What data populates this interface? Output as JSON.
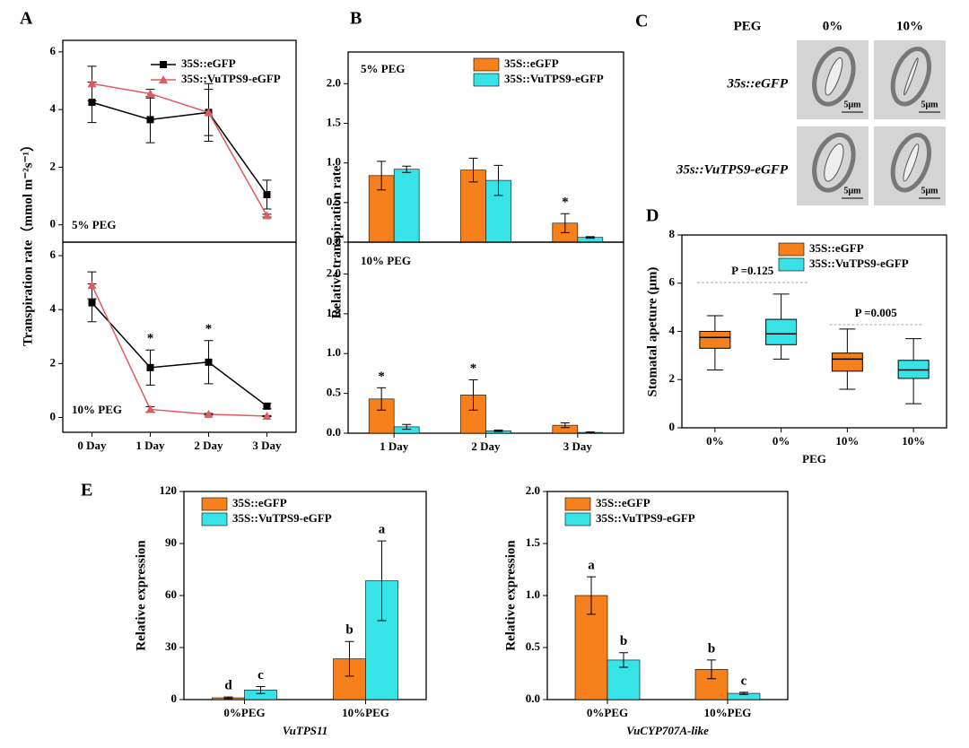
{
  "chart_data": [
    {
      "type": "line",
      "panel": "A",
      "subtitle": "5% PEG",
      "ylabel": "Transpiration rate（mmol m⁻²s⁻¹）",
      "ylim": [
        -0.6,
        6.4
      ],
      "yticks": [
        0,
        2,
        4,
        6
      ],
      "series": [
        {
          "name": "35S::eGFP",
          "color": "#000000",
          "marker": "square",
          "values": [
            4.25,
            3.65,
            3.9,
            1.05
          ],
          "errors": [
            0.7,
            0.8,
            0.8,
            0.5
          ]
        },
        {
          "name": "35S::VuTPS9-eGFP",
          "color": "#e05a5f",
          "marker": "triangle",
          "values": [
            4.9,
            4.55,
            3.9,
            0.32
          ],
          "errors": [
            0.6,
            0.15,
            1.0,
            0.05
          ]
        }
      ]
    },
    {
      "type": "line",
      "subtitle": "10% PEG",
      "categories": [
        "0 Day",
        "1 Day",
        "2 Day",
        "3 Day"
      ],
      "ylim": [
        -0.55,
        6.5
      ],
      "yticks": [
        0,
        2,
        4,
        6
      ],
      "series": [
        {
          "color": "#000000",
          "marker": "square",
          "values": [
            4.25,
            1.85,
            2.05,
            0.42
          ],
          "errors": [
            0.7,
            0.65,
            0.8,
            0.1
          ],
          "significance": [
            null,
            "*",
            "*",
            null
          ]
        },
        {
          "color": "#e05a5f",
          "marker": "triangle",
          "values": [
            4.9,
            0.3,
            0.12,
            0.05
          ],
          "errors": [
            0.5,
            0.1,
            0.03,
            0.02
          ]
        }
      ]
    },
    {
      "type": "bar",
      "panel": "B",
      "subtitle": "5% PEG",
      "ylabel": "Relative transpiration rate",
      "ylim": [
        0,
        2.4
      ],
      "yticks": [
        {
          "value": 0,
          "label": "0.0"
        },
        0.5,
        {
          "value": 1,
          "label": "1.0"
        },
        1.5,
        {
          "value": 2,
          "label": "2.0"
        }
      ],
      "series": [
        {
          "name": "35S::eGFP",
          "color": "#f5801c",
          "values": [
            0.84,
            0.91,
            0.24
          ],
          "errors": [
            0.18,
            0.15,
            0.12
          ],
          "significance": [
            null,
            null,
            "*"
          ]
        },
        {
          "name": "35S::VuTPS9-eGFP",
          "color": "#38e3e8",
          "values": [
            0.92,
            0.78,
            0.06
          ],
          "errors": [
            0.04,
            0.19,
            0.01
          ]
        }
      ]
    },
    {
      "type": "bar",
      "subtitle": "10% PEG",
      "categories": [
        "1 Day",
        "2 Day",
        "3 Day"
      ],
      "ylim": [
        0,
        2.4
      ],
      "yticks": [
        {
          "value": 0,
          "label": "0.0"
        },
        0.5,
        {
          "value": 1,
          "label": "1.0"
        },
        1.5,
        {
          "value": 2,
          "label": "2.0"
        }
      ],
      "series": [
        {
          "color": "#f5801c",
          "values": [
            0.43,
            0.48,
            0.1
          ],
          "errors": [
            0.14,
            0.19,
            0.03
          ],
          "significance": [
            "*",
            "*",
            null
          ]
        },
        {
          "color": "#38e3e8",
          "values": [
            0.08,
            0.03,
            0.01
          ],
          "errors": [
            0.03,
            0.01,
            0.005
          ]
        }
      ]
    },
    {
      "type": "image",
      "panel": "C",
      "header": "PEG",
      "columns": [
        "0%",
        "10%"
      ],
      "rows": [
        "35s::eGFP",
        "35s::VuTPS9-eGFP"
      ],
      "scale_label": "5μm"
    },
    {
      "type": "box",
      "panel": "D",
      "ylabel": "Stomatal apeture (μm)",
      "xlabel": "PEG",
      "categories": [
        "0%",
        "0%",
        "10%",
        "10%"
      ],
      "ylim": [
        0,
        8
      ],
      "yticks": [
        0,
        2,
        4,
        6,
        8
      ],
      "annotations": [
        "P =0.125",
        "P =0.005"
      ],
      "series": [
        {
          "name": "35S::eGFP",
          "color": "#f5801c",
          "min": [
            2.4,
            null,
            1.6,
            null
          ],
          "q1": [
            3.3,
            null,
            2.35,
            null
          ],
          "median": [
            3.75,
            null,
            2.85,
            null
          ],
          "q3": [
            4.0,
            null,
            3.1,
            null
          ],
          "max": [
            4.65,
            null,
            4.1,
            null
          ]
        },
        {
          "name": "35S::VuTPS9-eGFP",
          "color": "#38e3e8",
          "min": [
            null,
            2.85,
            null,
            1.0
          ],
          "q1": [
            null,
            3.45,
            null,
            2.05
          ],
          "median": [
            null,
            3.9,
            null,
            2.4
          ],
          "q3": [
            null,
            4.5,
            null,
            2.8
          ],
          "max": [
            null,
            5.55,
            null,
            3.7
          ]
        }
      ]
    },
    {
      "type": "bar",
      "panel": "E",
      "ylabel": "Relative expression",
      "xlabel": "VuTPS11",
      "categories": [
        "0%PEG",
        "10%PEG"
      ],
      "ylim": [
        0,
        120
      ],
      "yticks": [
        0,
        30,
        60,
        90,
        120
      ],
      "series": [
        {
          "name": "35S::eGFP",
          "color": "#f5801c",
          "values": [
            1,
            23.5
          ],
          "errors": [
            0.5,
            10
          ],
          "significance": [
            "d",
            "b"
          ]
        },
        {
          "name": "35S::VuTPS9-eGFP",
          "color": "#38e3e8",
          "values": [
            5.5,
            68.5
          ],
          "errors": [
            2,
            23
          ],
          "significance": [
            "c",
            "a"
          ]
        }
      ]
    },
    {
      "type": "bar",
      "ylabel": "Relative expression",
      "xlabel": "VuCYP707A-like",
      "categories": [
        "0%PEG",
        "10%PEG"
      ],
      "ylim": [
        0,
        2
      ],
      "yticks": [
        {
          "value": 0,
          "label": "0.0"
        },
        0.5,
        {
          "value": 1,
          "label": "1.0"
        },
        1.5,
        {
          "value": 2,
          "label": "2.0"
        }
      ],
      "series": [
        {
          "name": "35S::eGFP",
          "color": "#f5801c",
          "values": [
            1.0,
            0.29
          ],
          "errors": [
            0.18,
            0.09
          ],
          "significance": [
            "a",
            "b"
          ]
        },
        {
          "name": "35S::VuTPS9-eGFP",
          "color": "#38e3e8",
          "values": [
            0.38,
            0.06
          ],
          "errors": [
            0.07,
            0.01
          ],
          "significance": [
            "b",
            "c"
          ]
        }
      ]
    }
  ]
}
